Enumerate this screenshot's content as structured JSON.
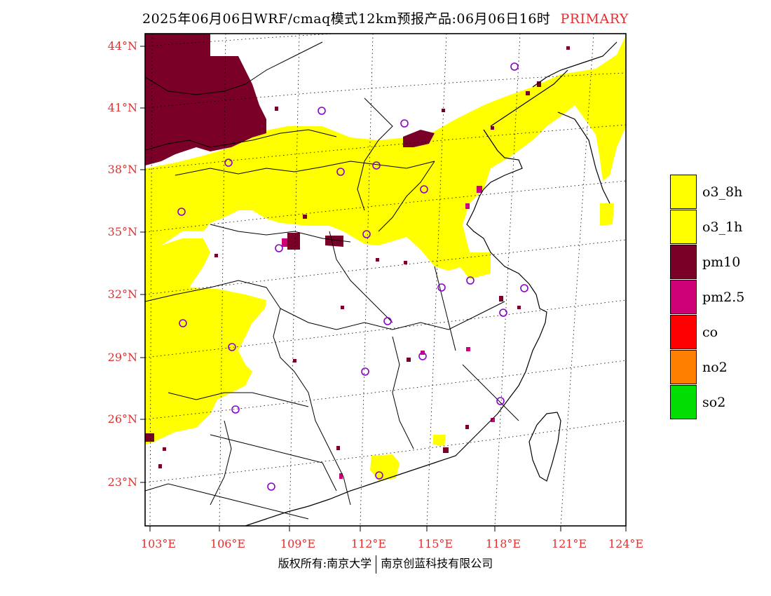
{
  "title": {
    "text": "2025年06月06日WRF/cmaq模式12km预报产品:06月06日16时",
    "tag": "PRIMARY",
    "tag_color": "#e03030"
  },
  "axes": {
    "lat_labels": [
      "44°N",
      "41°N",
      "38°N",
      "35°N",
      "32°N",
      "29°N",
      "26°N",
      "23°N"
    ],
    "lon_labels": [
      "103°E",
      "106°E",
      "109°E",
      "112°E",
      "115°E",
      "118°E",
      "121°E",
      "124°E"
    ],
    "label_color": "#e03030"
  },
  "legend": [
    {
      "label": "o3_8h",
      "color": "#ffff00"
    },
    {
      "label": "o3_1h",
      "color": "#ffff00"
    },
    {
      "label": "pm10",
      "color": "#7a0028"
    },
    {
      "label": "pm2.5",
      "color": "#cc0077"
    },
    {
      "label": "co",
      "color": "#ff0000"
    },
    {
      "label": "no2",
      "color": "#ff8000"
    },
    {
      "label": "so2",
      "color": "#00dd00"
    }
  ],
  "footer": {
    "left": "版权所有:南京大学",
    "right": "南京创蓝科技有限公司"
  }
}
